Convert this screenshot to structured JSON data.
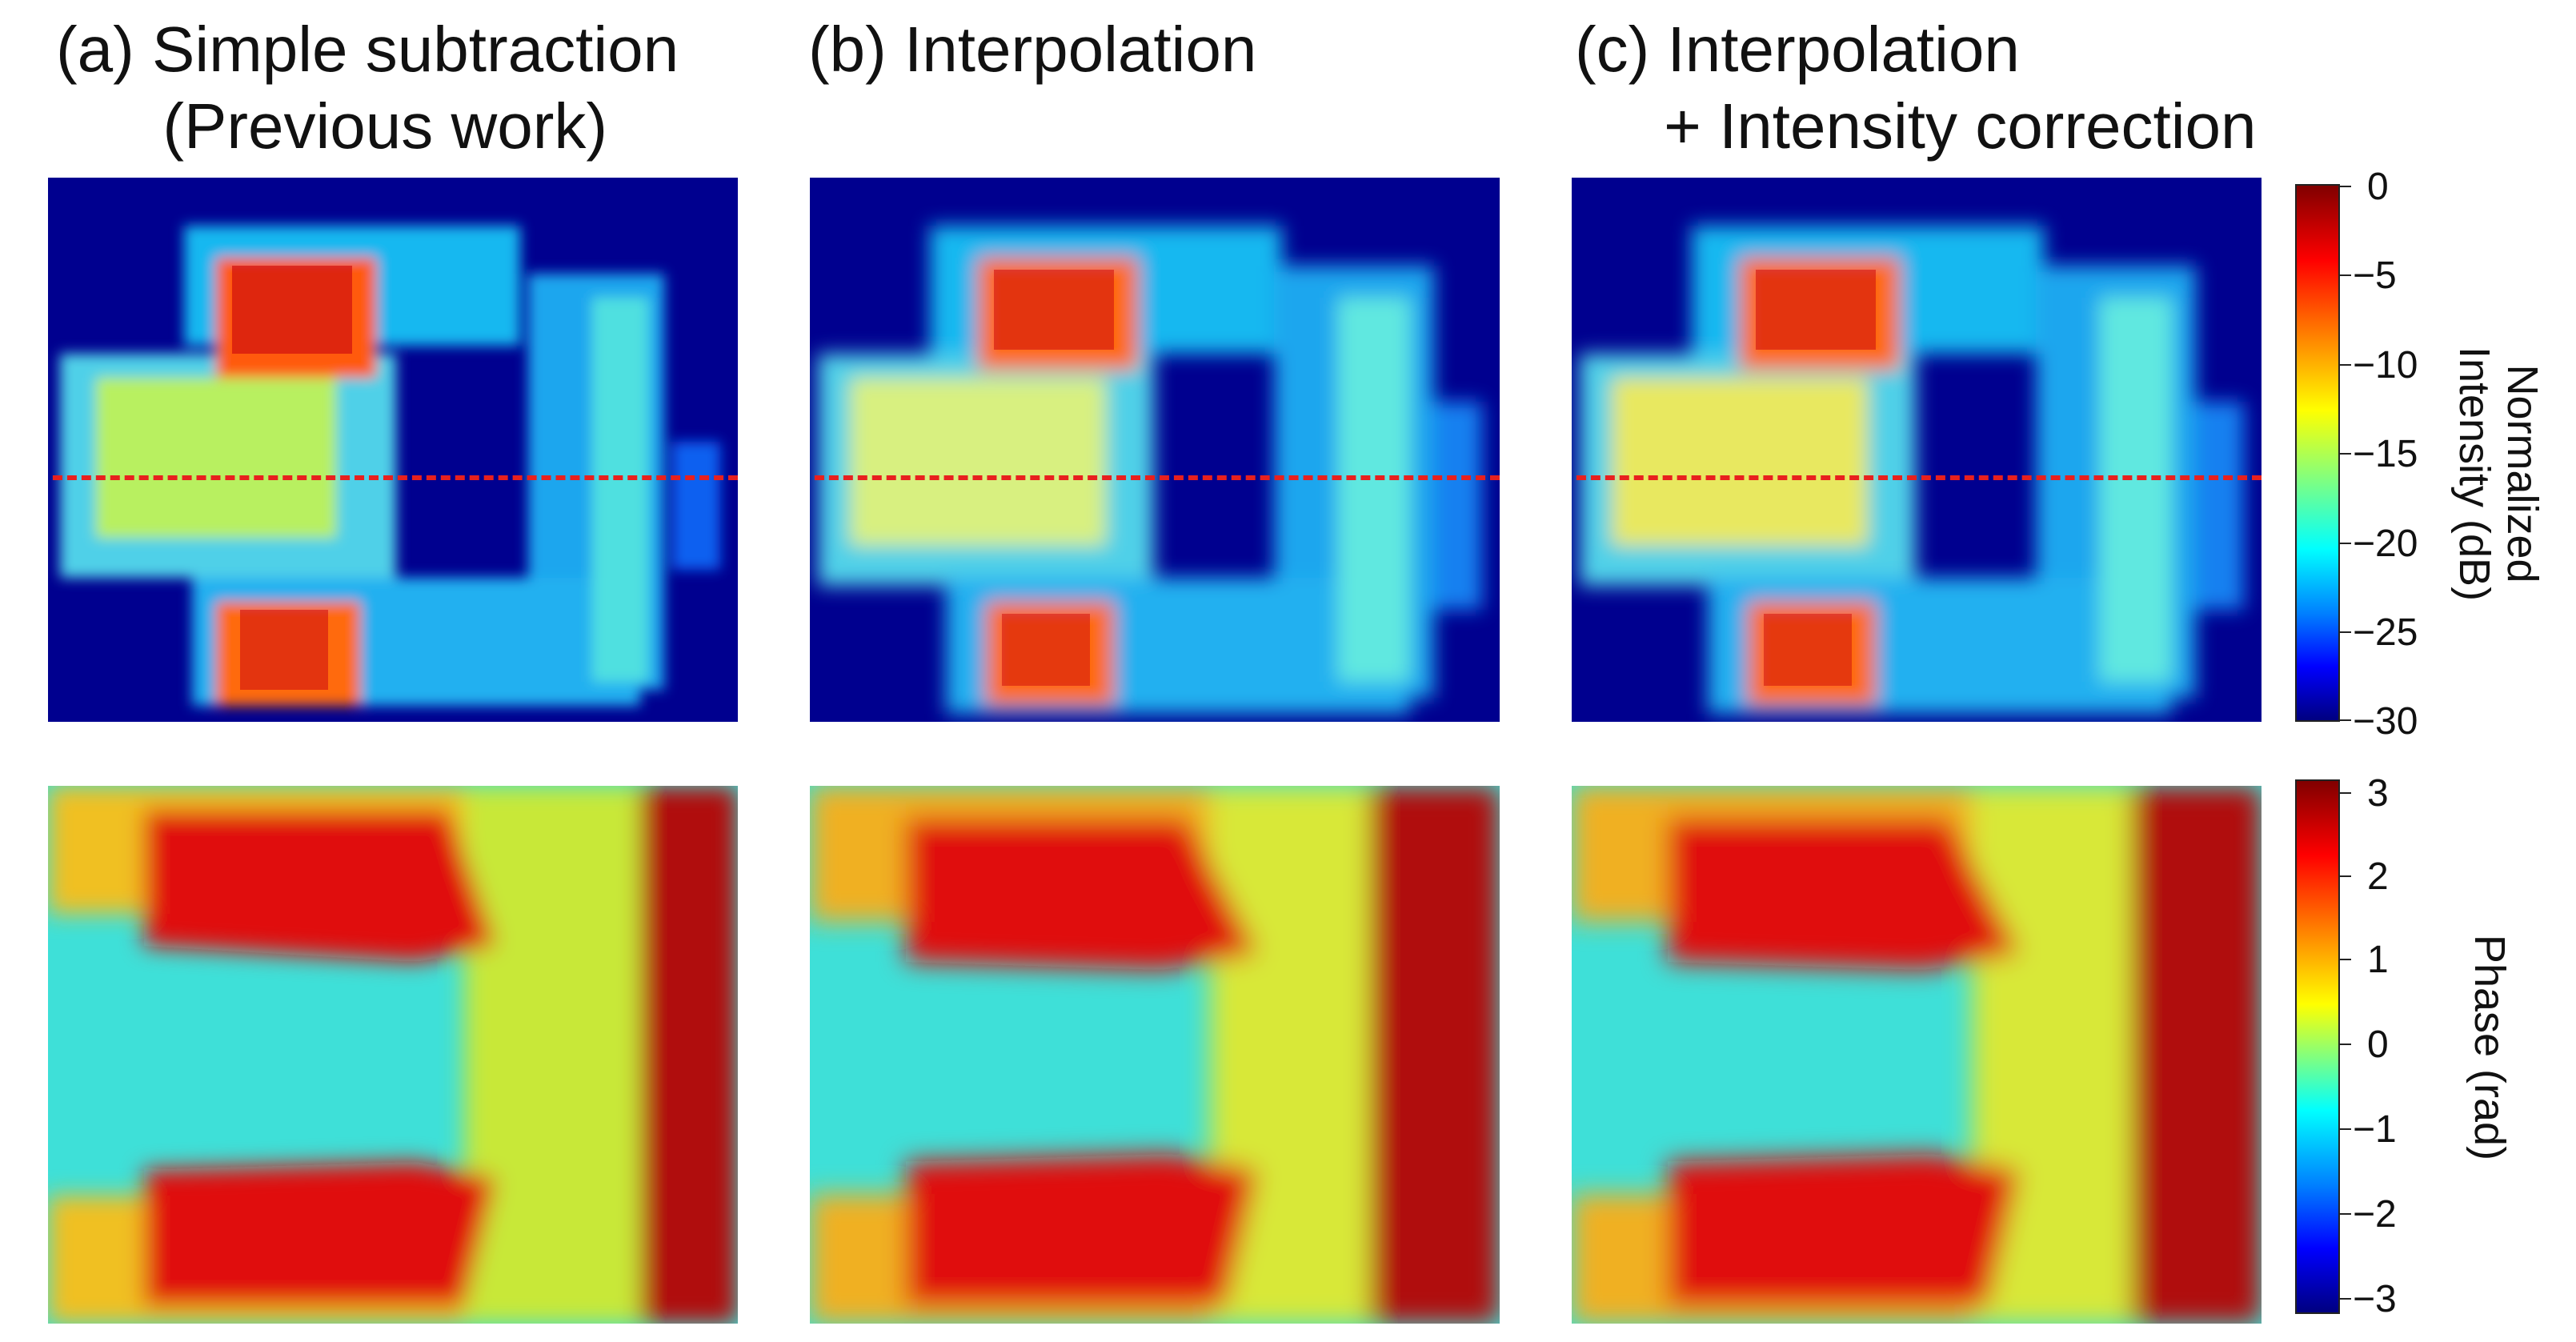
{
  "titles": {
    "a": "(a) Simple subtraction\n      (Previous work)",
    "b": "(b) Interpolation",
    "c": "(c) Interpolation\n     + Intensity correction"
  },
  "intensity_colorbar": {
    "label": "Normalized\nIntensity (dB)",
    "ticks": [
      "0",
      "−5",
      "−10",
      "−15",
      "−20",
      "−25",
      "−30"
    ]
  },
  "phase_colorbar": {
    "label": "Phase (rad)",
    "ticks": [
      "3",
      "2",
      "1",
      "0",
      "−1",
      "−2",
      "−3"
    ]
  },
  "colors": {
    "background": "#00008f",
    "dashed_line": "#e8201e"
  }
}
